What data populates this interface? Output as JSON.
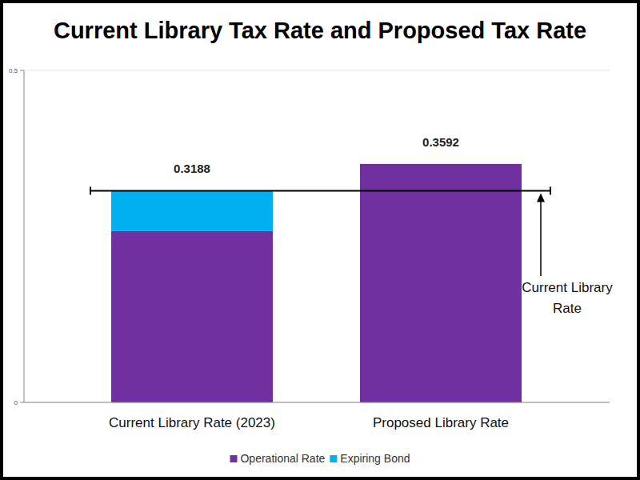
{
  "chart_data": {
    "type": "bar",
    "title": "Current Library Tax Rate and Proposed Tax Rate",
    "categories": [
      "Current Library Rate (2023)",
      "Proposed Library Rate"
    ],
    "series": [
      {
        "name": "Operational Rate",
        "color": "#7030a0",
        "values": [
          0.258,
          0.3592
        ]
      },
      {
        "name": "Expiring Bond",
        "color": "#00b0f0",
        "values": [
          0.0608,
          0
        ]
      }
    ],
    "stacked": true,
    "totals": [
      0.3188,
      0.3592
    ],
    "ylim": [
      0,
      0.5
    ],
    "yticks": [
      0,
      0.5
    ],
    "grid": true,
    "legend": "bottom",
    "annotations": [
      {
        "text": "Current Library Rate",
        "y": 0.3188
      }
    ]
  }
}
